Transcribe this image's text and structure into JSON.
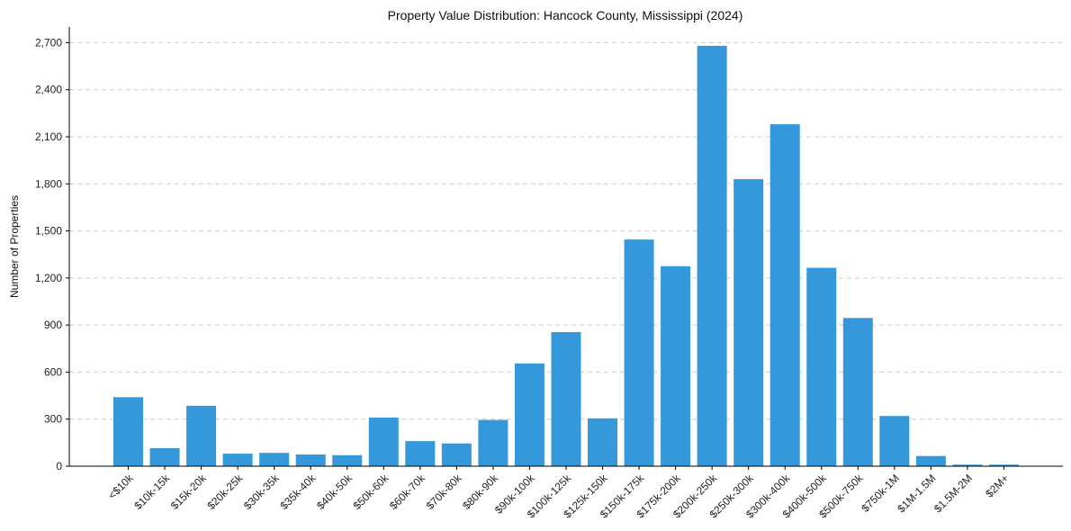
{
  "chart_data": {
    "type": "bar",
    "title": "Property Value Distribution: Hancock County, Mississippi (2024)",
    "xlabel": "",
    "ylabel": "Number of Properties",
    "ylim": [
      0,
      2800
    ],
    "yticks": [
      0,
      300,
      600,
      900,
      1200,
      1500,
      1800,
      2100,
      2400,
      2700
    ],
    "ytick_labels": [
      "0",
      "300",
      "600",
      "900",
      "1,200",
      "1,500",
      "1,800",
      "2,100",
      "2,400",
      "2,700"
    ],
    "grid": "y-dashed",
    "bar_color": "#3498db",
    "categories": [
      "<$10k",
      "$10k-15k",
      "$15k-20k",
      "$20k-25k",
      "$30k-35k",
      "$35k-40k",
      "$40k-50k",
      "$50k-60k",
      "$60k-70k",
      "$70k-80k",
      "$80k-90k",
      "$90k-100k",
      "$100k-125k",
      "$125k-150k",
      "$150k-175k",
      "$175k-200k",
      "$200k-250k",
      "$250k-300k",
      "$300k-400k",
      "$400k-500k",
      "$500k-750k",
      "$750k-1M",
      "$1M-1.5M",
      "$1.5M-2M",
      "$2M+"
    ],
    "values": [
      440,
      115,
      385,
      80,
      85,
      75,
      70,
      310,
      160,
      145,
      295,
      655,
      855,
      305,
      1445,
      1275,
      2680,
      1830,
      2180,
      1265,
      945,
      320,
      65,
      10,
      10
    ]
  }
}
